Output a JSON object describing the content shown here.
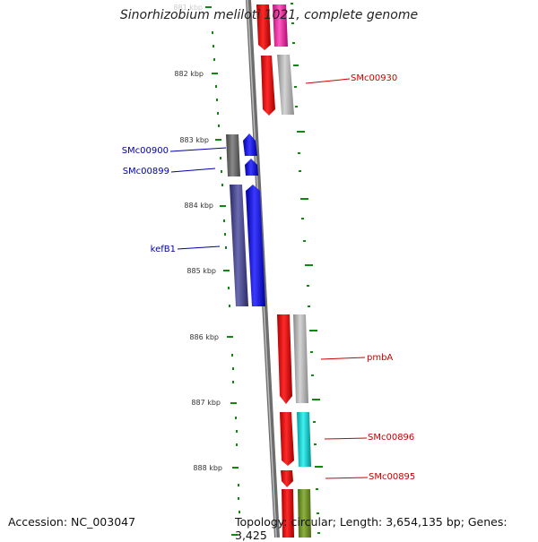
{
  "title": "Sinorhizobium meliloti 1021, complete genome",
  "footer": {
    "accession": "Accession: NC_003047",
    "topology": "Topology: circular; Length: 3,654,135 bp; Genes: 3,425"
  },
  "colors": {
    "backbone": "#777777",
    "tick": "#118811",
    "forward_label": "#cc0000",
    "reverse_label": "#0000aa"
  },
  "ticks": [
    "881 kbp",
    "882 kbp",
    "883 kbp",
    "884 kbp",
    "885 kbp",
    "886 kbp",
    "887 kbp",
    "888 kbp"
  ],
  "gene_labels": [
    {
      "name": "SMc00930",
      "strand": "forward"
    },
    {
      "name": "SMc00900",
      "strand": "reverse"
    },
    {
      "name": "SMc00899",
      "strand": "reverse"
    },
    {
      "name": "kefB1",
      "strand": "reverse"
    },
    {
      "name": "pmbA",
      "strand": "forward"
    },
    {
      "name": "SMc00896",
      "strand": "forward"
    },
    {
      "name": "SMc00895",
      "strand": "forward"
    }
  ],
  "feature_colors": [
    "#ff0000",
    "#ff1aa0",
    "#a8a8a8",
    "#666666",
    "#0000ff",
    "#3a3a8c",
    "#00c8c8",
    "#6b8e23"
  ]
}
